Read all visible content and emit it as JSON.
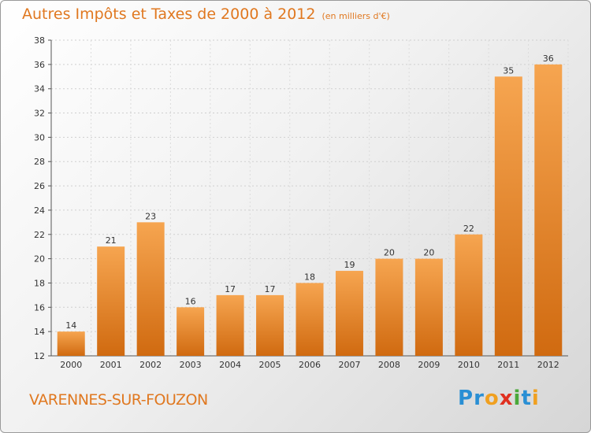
{
  "header": {
    "title": "Autres Impôts et Taxes de 2000 à 2012",
    "subtitle": "(en milliers d'€)"
  },
  "footer": {
    "commune": "VARENNES-SUR-FOUZON",
    "brand_letters": [
      {
        "ch": "P",
        "color": "#2a8fd4"
      },
      {
        "ch": "r",
        "color": "#2a8fd4"
      },
      {
        "ch": "o",
        "color": "#f0a020"
      },
      {
        "ch": "x",
        "color": "#e03020"
      },
      {
        "ch": "i",
        "color": "#4aa83a"
      },
      {
        "ch": "t",
        "color": "#2a8fd4"
      },
      {
        "ch": "i",
        "color": "#f0a020"
      }
    ]
  },
  "colors": {
    "bar_top": "#f6a550",
    "bar_bottom": "#d06a10",
    "accent": "#e07820"
  },
  "chart_data": {
    "type": "bar",
    "title": "Autres Impôts et Taxes de 2000 à 2012",
    "subtitle": "(en milliers d'€)",
    "categories": [
      "2000",
      "2001",
      "2002",
      "2003",
      "2004",
      "2005",
      "2006",
      "2007",
      "2008",
      "2009",
      "2010",
      "2011",
      "2012"
    ],
    "values": [
      14,
      21,
      23,
      16,
      17,
      17,
      18,
      19,
      20,
      20,
      22,
      35,
      36
    ],
    "ylim": [
      12,
      38
    ],
    "yticks": [
      12,
      14,
      16,
      18,
      20,
      22,
      24,
      26,
      28,
      30,
      32,
      34,
      36,
      38
    ],
    "grid": true,
    "xlabel": "",
    "ylabel": ""
  }
}
